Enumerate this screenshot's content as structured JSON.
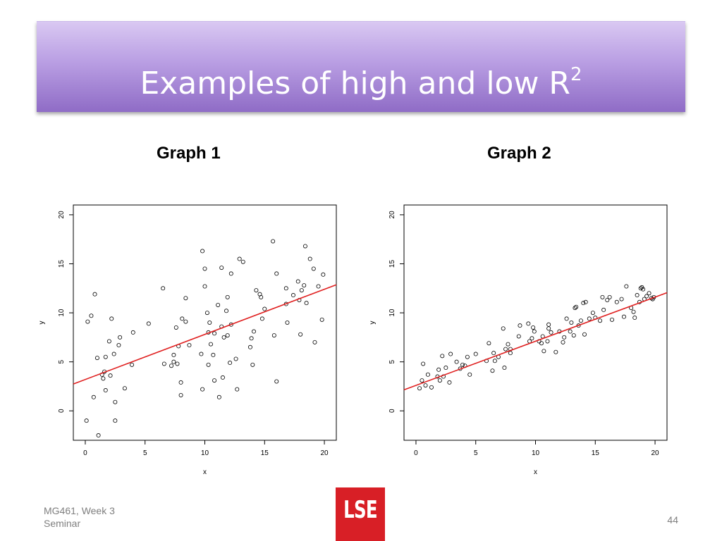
{
  "slide": {
    "title": "Examples of high and low R",
    "title_superscript": "2",
    "graph1_label": "Graph 1",
    "graph2_label": "Graph 2",
    "footer_line1": "MG461, Week 3",
    "footer_line2": "Seminar",
    "page_number": "44",
    "logo_text": "LSE",
    "title_color": "#ffffff",
    "title_bar_color": "#b99ee3",
    "logo_color": "#d81f26"
  },
  "chart_data": [
    {
      "type": "scatter",
      "xlabel": "x",
      "ylabel": "y",
      "xlim": [
        -1,
        21
      ],
      "ylim": [
        -3,
        21
      ],
      "xticks": [
        0,
        5,
        10,
        15,
        20
      ],
      "yticks": [
        0,
        5,
        10,
        15,
        20
      ],
      "fit_line": {
        "intercept": 3.2,
        "slope": 0.46,
        "color": "#e02020"
      },
      "points": [
        [
          0.1,
          -1.0
        ],
        [
          0.2,
          9.1
        ],
        [
          0.5,
          9.7
        ],
        [
          0.7,
          1.4
        ],
        [
          0.8,
          11.9
        ],
        [
          1.0,
          5.4
        ],
        [
          1.1,
          -2.5
        ],
        [
          1.4,
          3.7
        ],
        [
          1.5,
          3.3
        ],
        [
          1.6,
          4.0
        ],
        [
          1.7,
          5.5
        ],
        [
          1.7,
          2.1
        ],
        [
          2.0,
          7.1
        ],
        [
          2.1,
          3.6
        ],
        [
          2.2,
          9.4
        ],
        [
          2.4,
          5.8
        ],
        [
          2.5,
          0.9
        ],
        [
          2.5,
          -1.0
        ],
        [
          2.8,
          6.7
        ],
        [
          2.9,
          7.5
        ],
        [
          3.3,
          2.3
        ],
        [
          3.9,
          4.7
        ],
        [
          4.0,
          8.0
        ],
        [
          5.3,
          8.9
        ],
        [
          6.5,
          12.5
        ],
        [
          6.6,
          4.8
        ],
        [
          7.2,
          4.6
        ],
        [
          7.4,
          5.0
        ],
        [
          7.4,
          5.7
        ],
        [
          7.6,
          8.5
        ],
        [
          7.7,
          4.8
        ],
        [
          7.8,
          6.6
        ],
        [
          8.0,
          2.9
        ],
        [
          8.0,
          1.6
        ],
        [
          8.1,
          9.4
        ],
        [
          8.4,
          9.1
        ],
        [
          8.4,
          11.5
        ],
        [
          8.7,
          6.7
        ],
        [
          9.7,
          5.8
        ],
        [
          9.8,
          2.2
        ],
        [
          9.8,
          16.3
        ],
        [
          10.0,
          14.5
        ],
        [
          10.0,
          12.7
        ],
        [
          10.2,
          10.0
        ],
        [
          10.3,
          4.7
        ],
        [
          10.3,
          8.0
        ],
        [
          10.4,
          9.0
        ],
        [
          10.5,
          6.8
        ],
        [
          10.7,
          5.7
        ],
        [
          10.8,
          3.1
        ],
        [
          10.8,
          7.9
        ],
        [
          11.1,
          10.8
        ],
        [
          11.2,
          1.4
        ],
        [
          11.4,
          8.6
        ],
        [
          11.4,
          14.6
        ],
        [
          11.5,
          3.4
        ],
        [
          11.6,
          7.5
        ],
        [
          11.8,
          10.2
        ],
        [
          11.9,
          11.6
        ],
        [
          11.9,
          7.7
        ],
        [
          12.1,
          4.9
        ],
        [
          12.2,
          8.8
        ],
        [
          12.2,
          14.0
        ],
        [
          12.6,
          5.3
        ],
        [
          12.7,
          2.2
        ],
        [
          12.9,
          15.5
        ],
        [
          13.2,
          15.2
        ],
        [
          13.8,
          6.5
        ],
        [
          13.9,
          7.4
        ],
        [
          14.0,
          4.7
        ],
        [
          14.1,
          8.1
        ],
        [
          14.3,
          12.3
        ],
        [
          14.6,
          11.9
        ],
        [
          14.7,
          11.6
        ],
        [
          14.8,
          9.4
        ],
        [
          15.0,
          10.4
        ],
        [
          15.7,
          17.3
        ],
        [
          15.8,
          7.7
        ],
        [
          16.0,
          3.0
        ],
        [
          16.0,
          14.0
        ],
        [
          16.8,
          12.5
        ],
        [
          16.8,
          10.9
        ],
        [
          16.9,
          9.0
        ],
        [
          17.4,
          11.8
        ],
        [
          17.8,
          13.2
        ],
        [
          17.9,
          11.3
        ],
        [
          18.0,
          7.8
        ],
        [
          18.1,
          12.3
        ],
        [
          18.3,
          12.8
        ],
        [
          18.4,
          16.8
        ],
        [
          18.5,
          11.0
        ],
        [
          18.8,
          15.5
        ],
        [
          19.1,
          14.5
        ],
        [
          19.2,
          7.0
        ],
        [
          19.5,
          12.7
        ],
        [
          19.8,
          9.3
        ],
        [
          19.9,
          13.9
        ]
      ]
    },
    {
      "type": "scatter",
      "xlabel": "x",
      "ylabel": "y",
      "xlim": [
        -1,
        21
      ],
      "ylim": [
        -3,
        21
      ],
      "xticks": [
        0,
        5,
        10,
        15,
        20
      ],
      "yticks": [
        0,
        5,
        10,
        15,
        20
      ],
      "fit_line": {
        "intercept": 2.6,
        "slope": 0.45,
        "color": "#e02020"
      },
      "points": [
        [
          0.3,
          2.3
        ],
        [
          0.5,
          3.1
        ],
        [
          0.6,
          4.8
        ],
        [
          0.8,
          2.6
        ],
        [
          1.0,
          3.7
        ],
        [
          1.3,
          2.4
        ],
        [
          1.8,
          3.5
        ],
        [
          1.9,
          4.2
        ],
        [
          2.0,
          3.1
        ],
        [
          2.2,
          5.6
        ],
        [
          2.3,
          3.5
        ],
        [
          2.5,
          4.4
        ],
        [
          2.8,
          2.9
        ],
        [
          2.9,
          5.8
        ],
        [
          3.4,
          5.0
        ],
        [
          3.7,
          4.3
        ],
        [
          3.9,
          4.7
        ],
        [
          4.1,
          4.6
        ],
        [
          4.3,
          5.5
        ],
        [
          4.5,
          3.7
        ],
        [
          5.0,
          5.8
        ],
        [
          5.9,
          5.1
        ],
        [
          6.1,
          6.9
        ],
        [
          6.4,
          4.1
        ],
        [
          6.5,
          5.9
        ],
        [
          6.6,
          5.1
        ],
        [
          6.9,
          5.5
        ],
        [
          7.3,
          8.4
        ],
        [
          7.4,
          4.4
        ],
        [
          7.5,
          6.3
        ],
        [
          7.7,
          6.8
        ],
        [
          7.9,
          5.9
        ],
        [
          7.9,
          6.3
        ],
        [
          8.6,
          7.6
        ],
        [
          8.7,
          8.7
        ],
        [
          9.4,
          8.9
        ],
        [
          9.5,
          7.1
        ],
        [
          9.7,
          7.4
        ],
        [
          9.8,
          8.5
        ],
        [
          9.9,
          8.1
        ],
        [
          10.3,
          7.1
        ],
        [
          10.5,
          6.9
        ],
        [
          10.6,
          7.6
        ],
        [
          10.7,
          6.1
        ],
        [
          11.0,
          7.1
        ],
        [
          11.1,
          8.4
        ],
        [
          11.1,
          8.8
        ],
        [
          11.3,
          8.0
        ],
        [
          11.7,
          6.0
        ],
        [
          12.0,
          8.1
        ],
        [
          12.3,
          7.0
        ],
        [
          12.4,
          7.5
        ],
        [
          12.6,
          9.4
        ],
        [
          12.9,
          8.1
        ],
        [
          13.0,
          9.0
        ],
        [
          13.2,
          7.7
        ],
        [
          13.3,
          10.5
        ],
        [
          13.4,
          10.6
        ],
        [
          13.6,
          8.7
        ],
        [
          13.8,
          9.2
        ],
        [
          14.0,
          11.0
        ],
        [
          14.1,
          7.8
        ],
        [
          14.2,
          11.1
        ],
        [
          14.5,
          9.4
        ],
        [
          14.8,
          10.0
        ],
        [
          15.0,
          9.5
        ],
        [
          15.4,
          9.2
        ],
        [
          15.6,
          11.6
        ],
        [
          15.7,
          10.3
        ],
        [
          16.0,
          11.3
        ],
        [
          16.2,
          11.6
        ],
        [
          16.4,
          9.3
        ],
        [
          16.8,
          11.1
        ],
        [
          17.2,
          11.4
        ],
        [
          17.4,
          9.6
        ],
        [
          17.6,
          12.7
        ],
        [
          18.0,
          10.5
        ],
        [
          18.2,
          10.1
        ],
        [
          18.3,
          9.5
        ],
        [
          18.5,
          11.8
        ],
        [
          18.7,
          11.1
        ],
        [
          18.8,
          12.5
        ],
        [
          18.9,
          12.6
        ],
        [
          19.0,
          12.4
        ],
        [
          19.1,
          11.4
        ],
        [
          19.3,
          11.7
        ],
        [
          19.5,
          12.0
        ],
        [
          19.7,
          11.5
        ],
        [
          19.8,
          11.4
        ],
        [
          19.9,
          11.6
        ]
      ]
    }
  ]
}
